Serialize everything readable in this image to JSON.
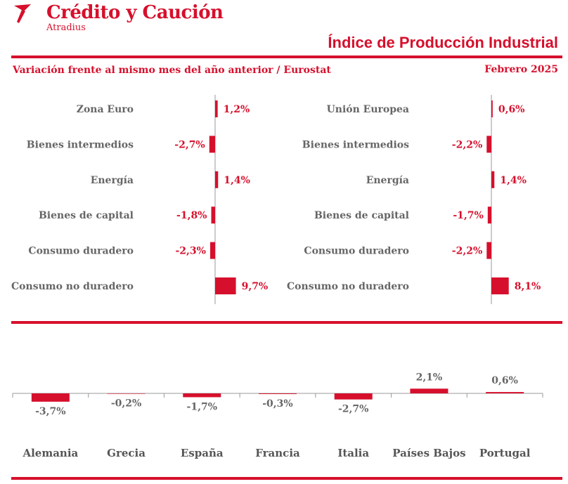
{
  "header": {
    "brand": "Crédito y Caución",
    "brand_sub": "Atradius",
    "title": "Índice de Producción Industrial",
    "subtitle": "Variación frente al mismo mes del año anterior / Eurostat",
    "date": "Febrero 2025"
  },
  "colors": {
    "accent": "#d6102c",
    "label_gray": "#666666"
  },
  "chart_data": [
    {
      "type": "bar",
      "orientation": "horizontal",
      "categories": [
        "Zona Euro",
        "Bienes intermedios",
        "Energía",
        "Bienes de capital",
        "Consumo duradero",
        "Consumo no duradero"
      ],
      "values": [
        1.2,
        -2.7,
        1.4,
        -1.8,
        -2.3,
        9.7
      ],
      "data_labels": [
        "1,2%",
        "-2,7%",
        "1,4%",
        "-1,8%",
        "-2,3%",
        "9,7%"
      ]
    },
    {
      "type": "bar",
      "orientation": "horizontal",
      "categories": [
        "Unión Europea",
        "Bienes intermedios",
        "Energía",
        "Bienes de capital",
        "Consumo duradero",
        "Consumo no duradero"
      ],
      "values": [
        0.6,
        -2.2,
        1.4,
        -1.7,
        -2.2,
        8.1
      ],
      "data_labels": [
        "0,6%",
        "-2,2%",
        "1,4%",
        "-1,7%",
        "-2,2%",
        "8,1%"
      ]
    },
    {
      "type": "bar",
      "orientation": "vertical",
      "categories": [
        "Alemania",
        "Grecia",
        "España",
        "Francia",
        "Italia",
        "Países Bajos",
        "Portugal"
      ],
      "values": [
        -3.7,
        -0.2,
        -1.7,
        -0.3,
        -2.7,
        2.1,
        0.6
      ],
      "data_labels": [
        "-3,7%",
        "-0,2%",
        "-1,7%",
        "-0,3%",
        "-2,7%",
        "2,1%",
        "0,6%"
      ]
    }
  ]
}
